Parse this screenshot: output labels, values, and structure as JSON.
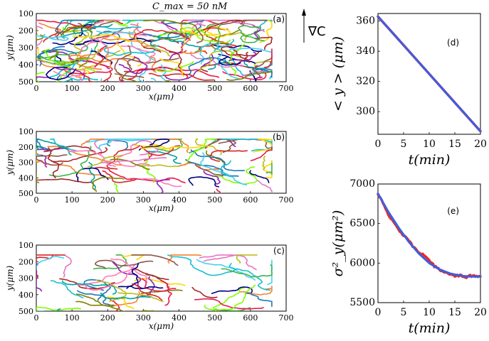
{
  "figure_title": "C_max = 50 nM",
  "gradient_label": "∇C",
  "chart_data": [
    {
      "type": "line",
      "panel": "(a)",
      "description_series": "cell trajectories (many colored tracks)",
      "xlabel": "x(μm)",
      "ylabel": "y(μm)",
      "xlim": [
        0,
        700
      ],
      "ylim": [
        100,
        500
      ],
      "xticks": [
        "0",
        "100",
        "200",
        "300",
        "400",
        "500",
        "600",
        "700"
      ],
      "yticks": [
        "100",
        "200",
        "300",
        "400",
        "500"
      ],
      "track_count": 160,
      "y_band": [
        150,
        500
      ]
    },
    {
      "type": "line",
      "panel": "(b)",
      "xlabel": "x(μm)",
      "ylabel": "y(μm)",
      "xlim": [
        0,
        700
      ],
      "ylim": [
        100,
        500
      ],
      "xticks": [
        "0",
        "100",
        "200",
        "300",
        "400",
        "500",
        "600",
        "700"
      ],
      "yticks": [
        "100",
        "200",
        "300",
        "400",
        "500"
      ],
      "track_count": 75,
      "y_band": [
        160,
        490
      ]
    },
    {
      "type": "line",
      "panel": "(c)",
      "xlabel": "x(μm)",
      "ylabel": "y(μm)",
      "xlim": [
        0,
        700
      ],
      "ylim": [
        100,
        500
      ],
      "xticks": [
        "0",
        "100",
        "200",
        "300",
        "400",
        "500",
        "600",
        "700"
      ],
      "yticks": [
        "100",
        "200",
        "300",
        "400",
        "500"
      ],
      "track_count": 55,
      "y_band": [
        170,
        500
      ]
    },
    {
      "type": "line",
      "panel": "(d)",
      "xlabel": "t(min)",
      "ylabel": "< y > (μm)",
      "xlim": [
        0,
        20
      ],
      "ylim": [
        285,
        365
      ],
      "xticks": [
        "0",
        "5",
        "10",
        "15",
        "20"
      ],
      "yticks": [
        "300",
        "320",
        "340",
        "360"
      ],
      "series": [
        {
          "name": "data",
          "color": "#e8282b",
          "x": [
            0,
            5,
            10,
            15,
            20
          ],
          "values": [
            363,
            344,
            325,
            306,
            287
          ]
        },
        {
          "name": "fit",
          "color": "#3b5fe0",
          "x": [
            0,
            20
          ],
          "values": [
            363,
            287
          ]
        }
      ]
    },
    {
      "type": "line",
      "panel": "(e)",
      "xlabel": "t(min)",
      "ylabel": "σ²_y(μm²)",
      "xlim": [
        0,
        20
      ],
      "ylim": [
        5500,
        7000
      ],
      "xticks": [
        "0",
        "5",
        "10",
        "15",
        "20"
      ],
      "yticks": [
        "5500",
        "6000",
        "6500",
        "7000"
      ],
      "series": [
        {
          "name": "data",
          "color": "#e8282b",
          "x": [
            0,
            1,
            2,
            3,
            4,
            5,
            6,
            7,
            8,
            9,
            10,
            11,
            12,
            13,
            14,
            15,
            16,
            17,
            18,
            19,
            20
          ],
          "values": [
            6880,
            6760,
            6620,
            6520,
            6430,
            6350,
            6280,
            6200,
            6140,
            6100,
            6040,
            5960,
            5920,
            5880,
            5860,
            5830,
            5850,
            5820,
            5840,
            5830,
            5830
          ]
        },
        {
          "name": "fit",
          "color": "#3b5fe0",
          "x": [
            0,
            2,
            4,
            6,
            8,
            10,
            12,
            14,
            16,
            18,
            20
          ],
          "values": [
            6880,
            6650,
            6450,
            6270,
            6120,
            6000,
            5920,
            5870,
            5840,
            5830,
            5830
          ]
        }
      ]
    }
  ],
  "palette": [
    "#e6194b",
    "#f58231",
    "#ffd700",
    "#3cb44b",
    "#1f77b4",
    "#911eb4",
    "#46d0f0",
    "#a52a2a",
    "#7fff00",
    "#ff7ab8",
    "#000080",
    "#808000",
    "#00a0a0",
    "#e377c2",
    "#8c564b",
    "#17becf",
    "#bcbd22",
    "#d62728"
  ]
}
